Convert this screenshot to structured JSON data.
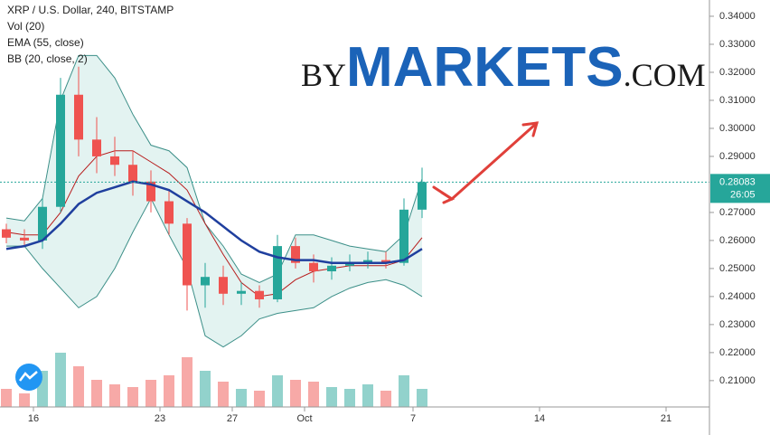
{
  "chart_data": {
    "type": "candlestick",
    "title": "XRP / U.S. Dollar, 240, BITSTAMP",
    "indicators": [
      "Vol (20)",
      "EMA (55, close)",
      "BB (20, close, 2)"
    ],
    "watermark": {
      "prefix": "BY",
      "main": "MARKETS",
      "suffix": ".COM"
    },
    "countdown": "26:05",
    "x": [
      14.5,
      15.5,
      16.5,
      17.5,
      18.5,
      19.5,
      20.5,
      21.5,
      22.5,
      23.5,
      24.5,
      25.5,
      26.5,
      27.5,
      28.5,
      29.5,
      30.5,
      31.5,
      32.5,
      33.5,
      34.5,
      35.5,
      36.5,
      37.5
    ],
    "open": [
      0.264,
      0.261,
      0.26,
      0.272,
      0.312,
      0.296,
      0.29,
      0.287,
      0.281,
      0.274,
      0.266,
      0.244,
      0.247,
      0.241,
      0.242,
      0.239,
      0.258,
      0.252,
      0.249,
      0.251,
      0.252,
      0.253,
      0.252,
      0.271
    ],
    "high": [
      0.266,
      0.264,
      0.275,
      0.318,
      0.322,
      0.304,
      0.297,
      0.292,
      0.285,
      0.278,
      0.268,
      0.252,
      0.251,
      0.245,
      0.244,
      0.262,
      0.261,
      0.255,
      0.254,
      0.255,
      0.256,
      0.256,
      0.275,
      0.286
    ],
    "low": [
      0.259,
      0.258,
      0.257,
      0.27,
      0.29,
      0.284,
      0.283,
      0.276,
      0.27,
      0.262,
      0.235,
      0.236,
      0.237,
      0.237,
      0.236,
      0.238,
      0.25,
      0.245,
      0.246,
      0.249,
      0.25,
      0.25,
      0.251,
      0.268
    ],
    "close": [
      0.261,
      0.26,
      0.272,
      0.312,
      0.296,
      0.29,
      0.287,
      0.281,
      0.274,
      0.266,
      0.244,
      0.247,
      0.241,
      0.242,
      0.239,
      0.258,
      0.252,
      0.249,
      0.251,
      0.252,
      0.253,
      0.252,
      0.271,
      0.28083
    ],
    "volume": [
      20,
      15,
      40,
      60,
      45,
      30,
      25,
      22,
      30,
      35,
      55,
      40,
      28,
      20,
      18,
      35,
      30,
      28,
      22,
      20,
      25,
      18,
      35,
      20
    ],
    "ema": [
      0.257,
      0.258,
      0.26,
      0.266,
      0.273,
      0.277,
      0.279,
      0.281,
      0.28,
      0.278,
      0.274,
      0.27,
      0.265,
      0.26,
      0.256,
      0.254,
      0.253,
      0.253,
      0.252,
      0.252,
      0.252,
      0.252,
      0.253,
      0.257
    ],
    "bb_upper": [
      0.268,
      0.267,
      0.275,
      0.31,
      0.326,
      0.326,
      0.318,
      0.305,
      0.294,
      0.292,
      0.286,
      0.266,
      0.258,
      0.248,
      0.245,
      0.248,
      0.262,
      0.262,
      0.26,
      0.258,
      0.257,
      0.256,
      0.262,
      0.282
    ],
    "bb_basis": [
      0.263,
      0.262,
      0.262,
      0.27,
      0.283,
      0.29,
      0.292,
      0.292,
      0.288,
      0.284,
      0.278,
      0.266,
      0.255,
      0.245,
      0.24,
      0.241,
      0.246,
      0.249,
      0.25,
      0.251,
      0.251,
      0.251,
      0.253,
      0.261
    ],
    "bb_lower": [
      0.258,
      0.258,
      0.25,
      0.243,
      0.236,
      0.24,
      0.25,
      0.263,
      0.275,
      0.262,
      0.25,
      0.226,
      0.222,
      0.226,
      0.232,
      0.234,
      0.235,
      0.236,
      0.24,
      0.243,
      0.245,
      0.246,
      0.244,
      0.24
    ],
    "colors": {
      "up": "#26a69a",
      "down": "#ef5350",
      "ema": "#1f3f9e",
      "basis": "#b71c1c",
      "band": "#3c8f88",
      "band_fill": "#e3f3f1"
    },
    "xlim": [
      14.15,
      53.4
    ],
    "xticks": [
      16,
      23,
      27,
      {
        "value": 31,
        "label": "Oct"
      },
      {
        "value": 37,
        "label": "7"
      },
      {
        "value": 44,
        "label": "14"
      },
      {
        "value": 51,
        "label": "21"
      }
    ],
    "ylim": [
      0.2006,
      0.3458
    ],
    "yticks": [
      {
        "value": 0.34,
        "label": "0.34000"
      },
      {
        "value": 0.33,
        "label": "0.33000"
      },
      {
        "value": 0.32,
        "label": "0.32000"
      },
      {
        "value": 0.31,
        "label": "0.31000"
      },
      {
        "value": 0.3,
        "label": "0.30000"
      },
      {
        "value": 0.29,
        "label": "0.29000"
      },
      {
        "value": 0.27,
        "label": "0.27000"
      },
      {
        "value": 0.26,
        "label": "0.26000"
      },
      {
        "value": 0.25,
        "label": "0.25000"
      },
      {
        "value": 0.24,
        "label": "0.24000"
      },
      {
        "value": 0.23,
        "label": "0.23000"
      },
      {
        "value": 0.22,
        "label": "0.22000"
      },
      {
        "value": 0.21,
        "label": "0.21000"
      }
    ]
  }
}
